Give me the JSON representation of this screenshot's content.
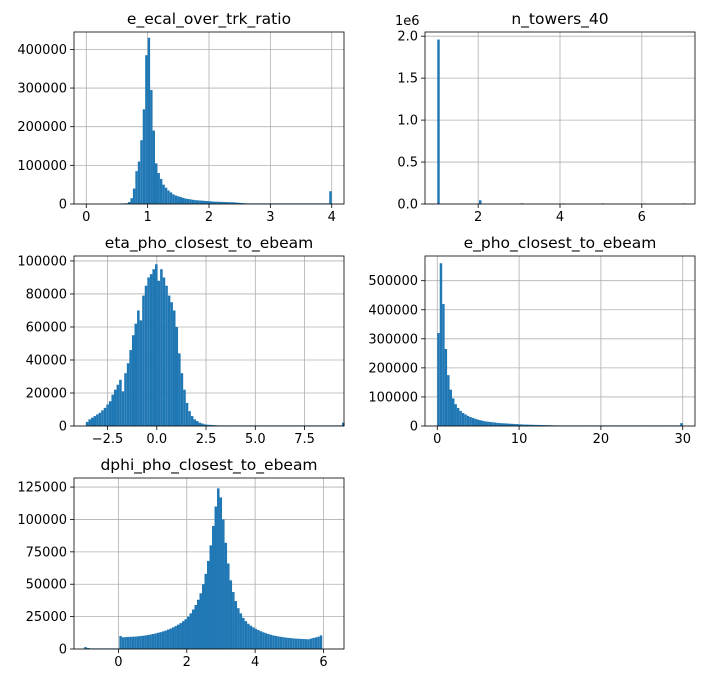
{
  "figure": {
    "background": "#ffffff",
    "bar_color": "#1f77b4",
    "grid_color": "#b0b0b0",
    "grid": true
  },
  "chart_data": [
    {
      "type": "bar",
      "title": "e_ecal_over_trk_ratio",
      "xlim": [
        -0.2,
        4.2
      ],
      "ylim": [
        0,
        445000
      ],
      "xticks": [
        0,
        1,
        2,
        3,
        4
      ],
      "xtick_labels": [
        "0",
        "1",
        "2",
        "3",
        "4"
      ],
      "yticks": [
        0,
        100000,
        200000,
        300000,
        400000
      ],
      "ytick_labels": [
        "0",
        "100000",
        "200000",
        "300000",
        "400000"
      ],
      "multiplier": "",
      "bin_start": 0,
      "bin_width": 0.04,
      "values": [
        0,
        0,
        0,
        0,
        0,
        0,
        0,
        0,
        0,
        0,
        0,
        0,
        0,
        0,
        500,
        1000,
        2000,
        5000,
        15000,
        40000,
        85000,
        110000,
        165000,
        245000,
        385000,
        430000,
        295000,
        190000,
        105000,
        80000,
        65000,
        50000,
        42000,
        35000,
        30000,
        25000,
        22000,
        20000,
        18000,
        16000,
        14000,
        13000,
        12000,
        11000,
        10000,
        9500,
        9000,
        8500,
        8000,
        7500,
        7000,
        6500,
        6000,
        6000,
        5500,
        5500,
        5000,
        5000,
        4500,
        4500,
        4000,
        3500,
        3000,
        2500,
        2000,
        1500,
        1000,
        1000,
        500,
        500,
        300,
        300,
        300,
        200,
        200,
        200,
        200,
        100,
        100,
        100,
        100,
        100,
        100,
        100,
        100,
        100,
        100,
        100,
        100,
        100,
        100,
        100,
        100,
        100,
        100,
        100,
        100,
        100,
        500,
        33000
      ]
    },
    {
      "type": "bar",
      "title": "n_towers_40",
      "xlim": [
        0.7,
        7.3
      ],
      "ylim": [
        0,
        2050000
      ],
      "xticks": [
        2,
        4,
        6
      ],
      "xtick_labels": [
        "2",
        "4",
        "6"
      ],
      "yticks": [
        0,
        500000,
        1000000,
        1500000,
        2000000
      ],
      "ytick_labels": [
        "0.0",
        "0.5",
        "1.0",
        "1.5",
        "2.0"
      ],
      "multiplier": "1e6",
      "bin_start": 1,
      "bin_width": 0.06,
      "values": [
        1960000,
        0,
        0,
        0,
        0,
        0,
        0,
        0,
        0,
        0,
        0,
        0,
        0,
        0,
        0,
        0,
        0,
        45000,
        0,
        0,
        0,
        0,
        0,
        0,
        0,
        0,
        0,
        0,
        0,
        0,
        0,
        0,
        0,
        0,
        8000,
        0,
        0,
        0,
        0,
        0,
        0,
        0,
        0,
        0,
        0,
        0,
        0,
        0,
        0,
        0,
        0,
        2000,
        0,
        0,
        0,
        0,
        0,
        0,
        0,
        0,
        0,
        0,
        0,
        0,
        0,
        0,
        0,
        500,
        0,
        0,
        0,
        0,
        0,
        0,
        0,
        0,
        0,
        0,
        0,
        0,
        0,
        0,
        0,
        0,
        200,
        0,
        0,
        0,
        0,
        0,
        0,
        0,
        0,
        0,
        0,
        0,
        0,
        0,
        0,
        0,
        100
      ]
    },
    {
      "type": "bar",
      "title": "eta_pho_closest_to_ebeam",
      "xlim": [
        -4.2,
        9.5
      ],
      "ylim": [
        0,
        103000
      ],
      "xticks": [
        -2.5,
        0,
        2.5,
        5,
        7.5
      ],
      "xtick_labels": [
        "−2.5",
        "0.0",
        "2.5",
        "5.0",
        "7.5"
      ],
      "yticks": [
        0,
        20000,
        40000,
        60000,
        80000,
        100000
      ],
      "ytick_labels": [
        "0",
        "20000",
        "40000",
        "60000",
        "80000",
        "100000"
      ],
      "multiplier": "",
      "bin_start": -3.6,
      "bin_width": 0.13,
      "values": [
        2500,
        4000,
        5000,
        6000,
        7000,
        8000,
        9500,
        11000,
        13000,
        15000,
        19000,
        22000,
        25000,
        28000,
        21000,
        32000,
        38000,
        46000,
        55000,
        62000,
        70000,
        64000,
        79000,
        85000,
        90000,
        92000,
        95000,
        98000,
        88000,
        95000,
        90000,
        85000,
        79000,
        75000,
        70000,
        60000,
        44000,
        32000,
        22000,
        14000,
        9000,
        6000,
        4000,
        3000,
        2000,
        1500,
        1000,
        800,
        700,
        600,
        500,
        400,
        300,
        300,
        300,
        300,
        300,
        300,
        300,
        300,
        300,
        200,
        200,
        200,
        200,
        200,
        200,
        200,
        200,
        200,
        200,
        200,
        200,
        200,
        200,
        200,
        200,
        200,
        200,
        200,
        200,
        200,
        200,
        200,
        200,
        200,
        200,
        200,
        200,
        200,
        200,
        200,
        200,
        200,
        200,
        200,
        200,
        200,
        200,
        200,
        2000
      ]
    },
    {
      "type": "bar",
      "title": "e_pho_closest_to_ebeam",
      "xlim": [
        -1.5,
        31.5
      ],
      "ylim": [
        0,
        585000
      ],
      "xticks": [
        0,
        10,
        20,
        30
      ],
      "xtick_labels": [
        "0",
        "10",
        "20",
        "30"
      ],
      "yticks": [
        0,
        100000,
        200000,
        300000,
        400000,
        500000
      ],
      "ytick_labels": [
        "0",
        "100000",
        "200000",
        "300000",
        "400000",
        "500000"
      ],
      "multiplier": "",
      "bin_start": 0,
      "bin_width": 0.3,
      "values": [
        320000,
        560000,
        420000,
        265000,
        175000,
        125000,
        95000,
        75000,
        62000,
        52000,
        45000,
        40000,
        35000,
        31000,
        28000,
        25000,
        22000,
        20000,
        18000,
        16000,
        15000,
        14000,
        13000,
        12000,
        11000,
        10000,
        9500,
        9000,
        8500,
        8000,
        7500,
        7000,
        6500,
        6000,
        5500,
        5000,
        4800,
        4500,
        4300,
        4000,
        3800,
        3600,
        3400,
        3200,
        3000,
        2800,
        2600,
        2400,
        2200,
        2000,
        1800,
        1600,
        1500,
        1400,
        1300,
        1200,
        1100,
        1000,
        900,
        800,
        700,
        600,
        500,
        500,
        400,
        400,
        300,
        300,
        300,
        300,
        200,
        200,
        200,
        200,
        200,
        200,
        200,
        200,
        200,
        200,
        200,
        200,
        200,
        200,
        200,
        200,
        200,
        200,
        200,
        200,
        200,
        200,
        200,
        200,
        200,
        200,
        200,
        200,
        200,
        10000
      ]
    },
    {
      "type": "bar",
      "title": "dphi_pho_closest_to_ebeam",
      "xlim": [
        -1.3,
        6.6
      ],
      "ylim": [
        0,
        132000
      ],
      "xticks": [
        0,
        2,
        4,
        6
      ],
      "xtick_labels": [
        "0",
        "2",
        "4",
        "6"
      ],
      "yticks": [
        0,
        25000,
        50000,
        75000,
        100000,
        125000
      ],
      "ytick_labels": [
        "0",
        "25000",
        "50000",
        "75000",
        "100000",
        "125000"
      ],
      "multiplier": "",
      "bin_start": -1.0,
      "bin_width": 0.0733,
      "values": [
        1500,
        800,
        500,
        400,
        300,
        300,
        300,
        300,
        300,
        300,
        300,
        300,
        300,
        300,
        10000,
        9000,
        9200,
        9300,
        9400,
        9500,
        9600,
        9800,
        10000,
        10200,
        10500,
        10800,
        11200,
        11600,
        12000,
        12500,
        13000,
        13600,
        14200,
        15000,
        15800,
        16700,
        17700,
        18800,
        20000,
        21500,
        23000,
        25000,
        27500,
        30500,
        34000,
        38000,
        43000,
        50000,
        58000,
        68000,
        80000,
        95000,
        110000,
        124000,
        117000,
        100000,
        82000,
        66000,
        53000,
        44000,
        37000,
        31500,
        27500,
        24000,
        21500,
        19500,
        18000,
        16700,
        15600,
        14600,
        13700,
        12900,
        12200,
        11600,
        11000,
        10500,
        10100,
        9700,
        9400,
        9100,
        8800,
        8600,
        8400,
        8200,
        8000,
        7900,
        7800,
        7700,
        7600,
        7500,
        8000,
        8500,
        9000,
        9500,
        10500
      ]
    }
  ]
}
